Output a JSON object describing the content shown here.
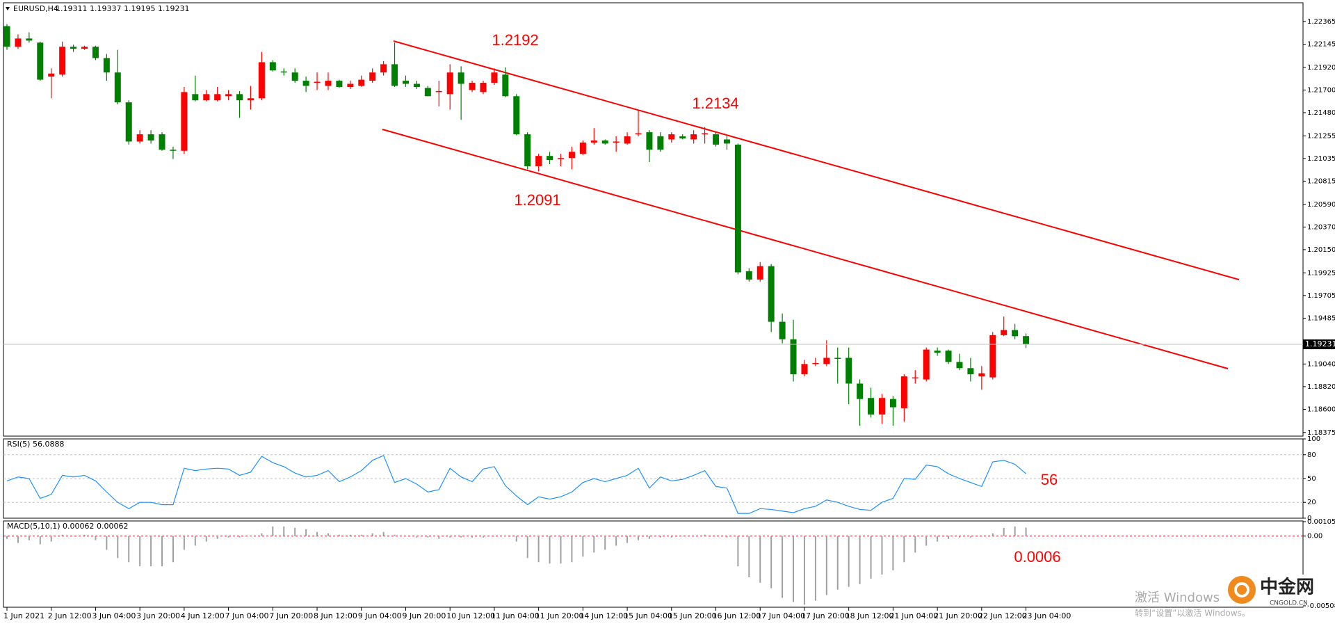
{
  "chart_data": [
    {
      "type": "candlestick",
      "title": "EURUSD,H4",
      "subtitle": "1.19311 1.19337 1.19195 1.19231",
      "up_color": "#ff0000",
      "down_color": "#008000",
      "categories": [
        "1 Jun 2021",
        null,
        null,
        null,
        "2 Jun 12:00",
        null,
        null,
        null,
        "3 Jun 04:00",
        null,
        null,
        null,
        "3 Jun 20:00",
        null,
        null,
        null,
        "4 Jun 12:00",
        null,
        null,
        null,
        "7 Jun 04:00",
        null,
        null,
        null,
        "7 Jun 20:00",
        null,
        null,
        null,
        "8 Jun 12:00",
        null,
        null,
        null,
        "9 Jun 04:00",
        null,
        null,
        null,
        "9 Jun 20:00",
        null,
        null,
        null,
        "10 Jun 12:00",
        null,
        null,
        null,
        "11 Jun 04:00",
        null,
        null,
        null,
        "11 Jun 20:00",
        null,
        null,
        null,
        "14 Jun 12:00",
        null,
        null,
        null,
        "15 Jun 04:00",
        null,
        null,
        null,
        "15 Jun 20:00",
        null,
        null,
        null,
        "16 Jun 12:00",
        null,
        null,
        null,
        "17 Jun 04:00",
        null,
        null,
        null,
        "17 Jun 20:00",
        null,
        null,
        null,
        "18 Jun 12:00",
        null,
        null,
        null,
        "21 Jun 04:00",
        null,
        null,
        null,
        "21 Jun 20:00",
        null,
        null,
        null,
        "22 Jun 12:00",
        null,
        null,
        null,
        "23 Jun 04:00"
      ],
      "values": [
        [
          1.2232,
          1.2234,
          1.2209,
          1.2212
        ],
        [
          1.2212,
          1.2224,
          1.221,
          1.222
        ],
        [
          1.222,
          1.2226,
          1.2216,
          1.2218
        ],
        [
          1.2216,
          1.2217,
          1.2179,
          1.218
        ],
        [
          1.2183,
          1.2191,
          1.2162,
          1.2186
        ],
        [
          1.2185,
          1.2217,
          1.2183,
          1.2212
        ],
        [
          1.2212,
          1.2214,
          1.2207,
          1.221
        ],
        [
          1.221,
          1.2213,
          1.2209,
          1.2212
        ],
        [
          1.2212,
          1.2213,
          1.2199,
          1.2201
        ],
        [
          1.2201,
          1.2205,
          1.2179,
          1.2187
        ],
        [
          1.2187,
          1.2209,
          1.2156,
          1.2158
        ],
        [
          1.2158,
          1.216,
          1.2117,
          1.212
        ],
        [
          1.212,
          1.2131,
          1.2118,
          1.2127
        ],
        [
          1.2127,
          1.2131,
          1.2118,
          1.2121
        ],
        [
          1.2127,
          1.2129,
          1.2111,
          1.2112
        ],
        [
          1.2112,
          1.2115,
          1.2103,
          1.2111
        ],
        [
          1.2111,
          1.2173,
          1.2108,
          1.2168
        ],
        [
          1.2166,
          1.2184,
          1.2159,
          1.216
        ],
        [
          1.216,
          1.217,
          1.2159,
          1.2166
        ],
        [
          1.216,
          1.2173,
          1.2159,
          1.2166
        ],
        [
          1.2164,
          1.217,
          1.216,
          1.2166
        ],
        [
          1.2166,
          1.2169,
          1.2143,
          1.216
        ],
        [
          1.216,
          1.2174,
          1.2151,
          1.2162
        ],
        [
          1.2162,
          1.2207,
          1.216,
          1.2197
        ],
        [
          1.2197,
          1.2199,
          1.2188,
          1.2189
        ],
        [
          1.2188,
          1.2191,
          1.2184,
          1.2187
        ],
        [
          1.2187,
          1.2191,
          1.2177,
          1.2179
        ],
        [
          1.2179,
          1.2183,
          1.2168,
          1.2174
        ],
        [
          1.2177,
          1.2187,
          1.217,
          1.2178
        ],
        [
          1.2174,
          1.2187,
          1.217,
          1.2179
        ],
        [
          1.2179,
          1.218,
          1.2172,
          1.2173
        ],
        [
          1.2173,
          1.2179,
          1.2171,
          1.2176
        ],
        [
          1.2174,
          1.2184,
          1.2173,
          1.218
        ],
        [
          1.2179,
          1.2191,
          1.2177,
          1.2187
        ],
        [
          1.2187,
          1.2198,
          1.2184,
          1.2195
        ],
        [
          1.2195,
          1.2216,
          1.2173,
          1.2174
        ],
        [
          1.2179,
          1.2184,
          1.2173,
          1.2176
        ],
        [
          1.2176,
          1.2179,
          1.2171,
          1.2173
        ],
        [
          1.2172,
          1.2174,
          1.2164,
          1.2164
        ],
        [
          1.2168,
          1.2179,
          1.2154,
          1.2169
        ],
        [
          1.2166,
          1.2195,
          1.2151,
          1.2187
        ],
        [
          1.2187,
          1.2193,
          1.2141,
          1.2176
        ],
        [
          1.217,
          1.2179,
          1.2168,
          1.2177
        ],
        [
          1.2168,
          1.2179,
          1.2166,
          1.2177
        ],
        [
          1.2177,
          1.2191,
          1.2175,
          1.2187
        ],
        [
          1.2185,
          1.2192,
          1.2163,
          1.2164
        ],
        [
          1.2164,
          1.2166,
          1.2126,
          1.2127
        ],
        [
          1.2127,
          1.2129,
          1.2093,
          1.2096
        ],
        [
          1.2096,
          1.2108,
          1.2091,
          1.2106
        ],
        [
          1.2106,
          1.211,
          1.2098,
          1.2102
        ],
        [
          1.2103,
          1.2108,
          1.2096,
          1.2104
        ],
        [
          1.2104,
          1.2115,
          1.2093,
          1.211
        ],
        [
          1.2108,
          1.2121,
          1.2107,
          1.2119
        ],
        [
          1.2119,
          1.2133,
          1.2117,
          1.2121
        ],
        [
          1.2121,
          1.2122,
          1.2117,
          1.2118
        ],
        [
          1.2119,
          1.2125,
          1.211,
          1.212
        ],
        [
          1.2118,
          1.2129,
          1.2117,
          1.2125
        ],
        [
          1.2127,
          1.215,
          1.2125,
          1.2128
        ],
        [
          1.2129,
          1.2131,
          1.21,
          1.2112
        ],
        [
          1.2125,
          1.2129,
          1.211,
          1.2112
        ],
        [
          1.2122,
          1.2129,
          1.2119,
          1.2127
        ],
        [
          1.2125,
          1.2127,
          1.2122,
          1.2123
        ],
        [
          1.2122,
          1.2131,
          1.2118,
          1.2127
        ],
        [
          1.2127,
          1.2134,
          1.2118,
          1.2128
        ],
        [
          1.2127,
          1.2129,
          1.2115,
          1.2117
        ],
        [
          1.2122,
          1.2125,
          1.2112,
          1.2118
        ],
        [
          1.2117,
          1.2118,
          1.1991,
          1.1993
        ],
        [
          1.1994,
          1.1997,
          1.1984,
          1.1986
        ],
        [
          1.1986,
          1.2003,
          1.1984,
          1.1999
        ],
        [
          1.1999,
          1.2001,
          1.1935,
          1.1945
        ],
        [
          1.1945,
          1.1953,
          1.1924,
          1.1928
        ],
        [
          1.1928,
          1.1947,
          1.1887,
          1.1894
        ],
        [
          1.1894,
          1.1908,
          1.1892,
          1.1904
        ],
        [
          1.1904,
          1.191,
          1.1902,
          1.1905
        ],
        [
          1.1904,
          1.1927,
          1.1902,
          1.191
        ],
        [
          1.191,
          1.192,
          1.1885,
          1.1909
        ],
        [
          1.191,
          1.192,
          1.1865,
          1.1885
        ],
        [
          1.1885,
          1.1889,
          1.1844,
          1.187
        ],
        [
          1.1871,
          1.1881,
          1.1852,
          1.1855
        ],
        [
          1.1855,
          1.1875,
          1.1846,
          1.1871
        ],
        [
          1.187,
          1.1873,
          1.1844,
          1.1862
        ],
        [
          1.1861,
          1.1894,
          1.1848,
          1.1892
        ],
        [
          1.189,
          1.1898,
          1.1885,
          1.1891
        ],
        [
          1.1889,
          1.192,
          1.1887,
          1.1918
        ],
        [
          1.1917,
          1.192,
          1.1912,
          1.1915
        ],
        [
          1.1917,
          1.1918,
          1.1904,
          1.1906
        ],
        [
          1.1906,
          1.1914,
          1.1898,
          1.19
        ],
        [
          1.19,
          1.191,
          1.1887,
          1.1894
        ],
        [
          1.1892,
          1.1902,
          1.1879,
          1.1895
        ],
        [
          1.1891,
          1.1935,
          1.1889,
          1.1932
        ],
        [
          1.1932,
          1.195,
          1.1931,
          1.1937
        ],
        [
          1.1937,
          1.1943,
          1.1928,
          1.1931
        ],
        [
          1.19311,
          1.19337,
          1.19195,
          1.19231
        ]
      ],
      "current_price": 1.19231,
      "ylim": [
        1.1834,
        1.2254
      ],
      "yticks": [
        1.22365,
        1.22145,
        {
          "value": 1.2192,
          "label": "1.21920"
        },
        {
          "value": 1.217,
          "label": "1.21700"
        },
        {
          "value": 1.2148,
          "label": "1.21480"
        },
        1.21255,
        1.21035,
        1.20815,
        {
          "value": 1.2059,
          "label": "1.20590"
        },
        {
          "value": 1.2037,
          "label": "1.20370"
        },
        {
          "value": 1.2015,
          "label": "1.20150"
        },
        1.19925,
        1.19705,
        1.19485,
        {
          "value": 1.1904,
          "label": "1.19040"
        },
        {
          "value": 1.1882,
          "label": "1.18820"
        },
        {
          "value": 1.186,
          "label": "1.18600"
        },
        1.18375
      ],
      "annotations": [
        "1.2192",
        "1.2134",
        "1.2091"
      ]
    },
    {
      "type": "line",
      "title": "RSI(5) 56.0888",
      "color": "#1e90ff",
      "values": [
        47,
        52,
        50,
        25,
        30,
        54,
        52,
        54,
        47,
        33,
        20,
        12,
        20,
        20,
        17,
        17,
        63,
        60,
        62,
        63,
        62,
        54,
        58,
        78,
        70,
        65,
        57,
        52,
        54,
        60,
        46,
        52,
        60,
        73,
        79,
        45,
        50,
        43,
        33,
        36,
        63,
        52,
        46,
        62,
        65,
        41,
        28,
        17,
        27,
        24,
        27,
        33,
        45,
        50,
        46,
        50,
        54,
        63,
        38,
        52,
        47,
        49,
        54,
        60,
        40,
        38,
        6,
        6,
        12,
        11,
        9,
        7,
        12,
        15,
        23,
        20,
        15,
        11,
        10,
        20,
        25,
        50,
        49,
        67,
        65,
        56,
        50,
        45,
        40,
        71,
        73,
        68,
        56.0888
      ],
      "ylim": [
        0,
        100
      ],
      "yticks": [
        100,
        80,
        50,
        20,
        0
      ],
      "grid_levels": [
        80,
        50,
        20
      ],
      "annotations": [
        "56"
      ]
    },
    {
      "type": "bar",
      "title": "MACD(5,10,1) 0.00062 0.00062",
      "color": "#a0a0a0",
      "values": [
        -0.0002,
        -0.0005,
        -0.0003,
        -0.0006,
        -0.0004,
        0.0001,
        0,
        0.0001,
        -0.0003,
        -0.001,
        -0.0016,
        -0.0019,
        -0.0022,
        -0.0022,
        -0.0022,
        -0.0019,
        -0.001,
        -0.0007,
        -0.0004,
        -0.0002,
        -0.0001,
        -0.0001,
        0,
        0.0002,
        0.0007,
        0.0007,
        0.0006,
        0.0005,
        0.0003,
        0.0002,
        0.0001,
        0.0001,
        0.0001,
        0.0002,
        0.0003,
        0.0001,
        0,
        -0.0001,
        -0.0001,
        -0.0002,
        -0.0001,
        -0.0001,
        -0.0001,
        -0.0001,
        0,
        0,
        -0.0004,
        -0.0016,
        -0.0019,
        -0.002,
        -0.002,
        -0.0019,
        -0.0015,
        -0.0012,
        -0.001,
        -0.0007,
        -0.0005,
        -0.0003,
        -0.0002,
        -0.0001,
        -0.0001,
        0,
        0,
        0.0001,
        0,
        -0.0001,
        -0.0022,
        -0.003,
        -0.0034,
        -0.0038,
        -0.0045,
        -0.0048,
        -0.005,
        -0.0047,
        -0.0043,
        -0.0039,
        -0.0037,
        -0.0035,
        -0.0031,
        -0.0028,
        -0.0025,
        -0.0019,
        -0.0012,
        -0.0007,
        -0.0004,
        -0.0002,
        -0.0001,
        -0.0001,
        0,
        0.0002,
        0.0006,
        0.0007,
        0.00062
      ],
      "ylim": [
        -0.00508,
        0.00105
      ],
      "yticks": [
        0.00105,
        {
          "value": 0,
          "label": "0.00"
        },
        -0.00508
      ],
      "annotations": [
        "0.0006"
      ]
    }
  ],
  "watermark": {
    "title": "激活 Windows",
    "subtitle": "转到“设置”以激活 Windows。"
  },
  "logo": {
    "name": "中金网",
    "site": "CNGOLD.CN"
  }
}
